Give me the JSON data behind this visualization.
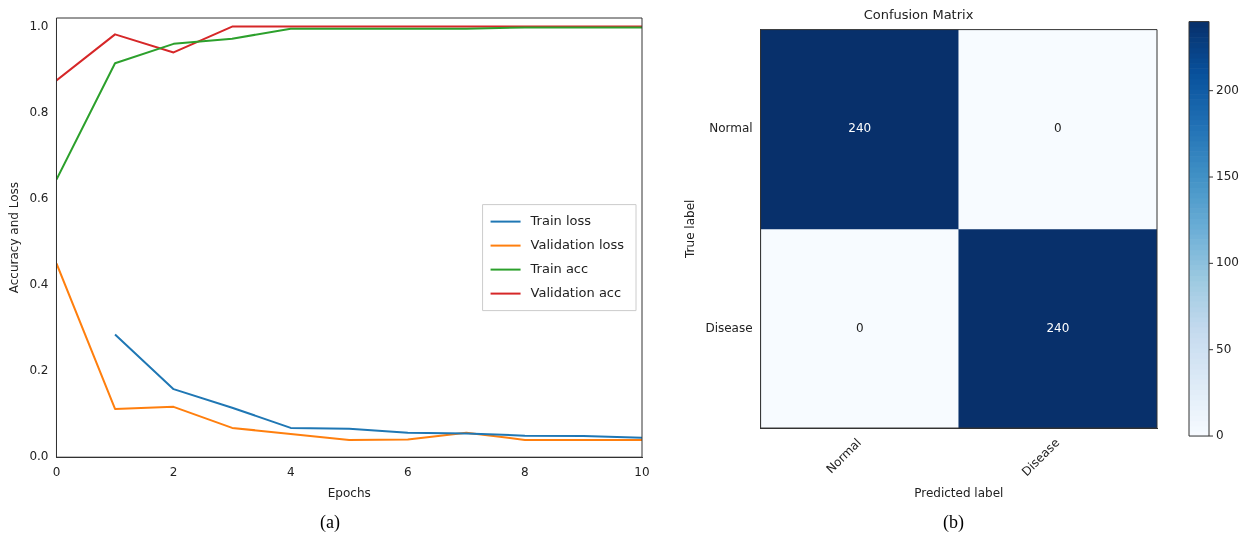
{
  "chart_data": [
    {
      "type": "line",
      "xlabel": "Epochs",
      "ylabel": "Accuracy and Loss",
      "x": [
        0,
        1,
        2,
        3,
        4,
        5,
        6,
        7,
        8,
        9,
        10
      ],
      "xlim": [
        0,
        10
      ],
      "xticks": [
        0,
        2,
        4,
        6,
        8,
        10
      ],
      "ylim": [
        0,
        1.02
      ],
      "yticks": [
        {
          "value": 0,
          "label": "0.0"
        },
        0.2,
        0.4,
        0.6,
        0.8,
        {
          "value": 1,
          "label": "1.0"
        }
      ],
      "grid": false,
      "legend": "right",
      "annotations": [
        "(a)"
      ],
      "series": [
        {
          "name": "Train loss",
          "color": "#1f77b4",
          "values": [
            null,
            0.285,
            0.158,
            0.115,
            0.068,
            0.066,
            0.057,
            0.055,
            0.05,
            0.049,
            0.045
          ]
        },
        {
          "name": "Validation loss",
          "color": "#ff7f0e",
          "values": [
            0.45,
            0.112,
            0.117,
            0.068,
            0.054,
            0.04,
            0.041,
            0.057,
            0.04,
            0.04,
            0.04
          ]
        },
        {
          "name": "Train acc",
          "color": "#2ca02c",
          "values": [
            0.645,
            0.915,
            0.96,
            0.972,
            0.995,
            0.995,
            0.995,
            0.995,
            0.998,
            0.998,
            0.998
          ]
        },
        {
          "name": "Validation acc",
          "color": "#d62728",
          "values": [
            0.875,
            0.982,
            0.94,
            1.0,
            1.0,
            1.0,
            1.0,
            1.0,
            1.0,
            1.0,
            1.0
          ]
        }
      ]
    },
    {
      "type": "heatmap",
      "title": "Confusion Matrix",
      "xlabel": "Predicted label",
      "ylabel": "True label",
      "annotations": [
        "(b)"
      ],
      "categories": [
        "Normal",
        "Disease"
      ],
      "y_categories": [
        "Normal",
        "Disease"
      ],
      "cells": [
        [
          240,
          0
        ],
        [
          0,
          240
        ]
      ],
      "clim": [
        0,
        240
      ],
      "cticks": [
        0,
        50,
        100,
        150,
        200
      ],
      "data_labels": true
    }
  ]
}
